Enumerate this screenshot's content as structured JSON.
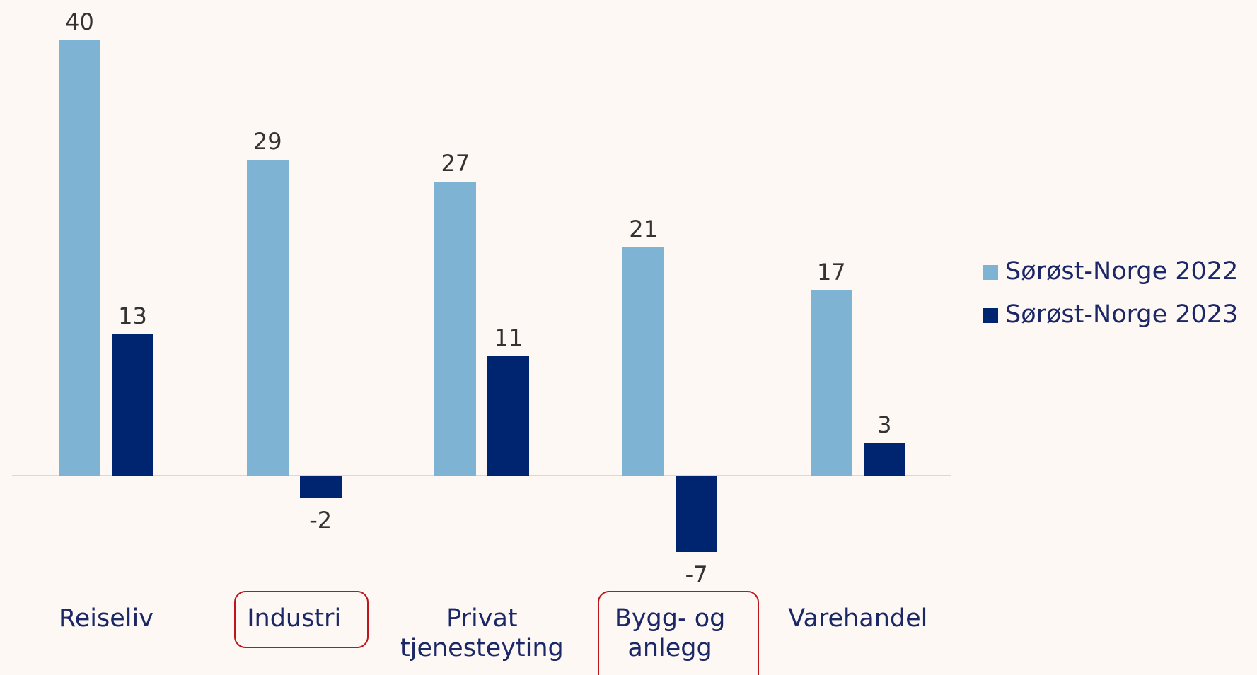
{
  "chart_data": {
    "type": "bar",
    "categories": [
      "Reiseliv",
      "Industri",
      "Privat tjenesteyting",
      "Bygg- og anlegg",
      "Varehandel"
    ],
    "series": [
      {
        "name": "Sørøst-Norge 2022",
        "color": "#7fb3d3",
        "values": [
          40,
          29,
          27,
          21,
          17
        ]
      },
      {
        "name": "Sørøst-Norge 2023",
        "color": "#002570",
        "values": [
          13,
          -2,
          11,
          -7,
          3
        ]
      }
    ],
    "legend": "right"
  }
}
